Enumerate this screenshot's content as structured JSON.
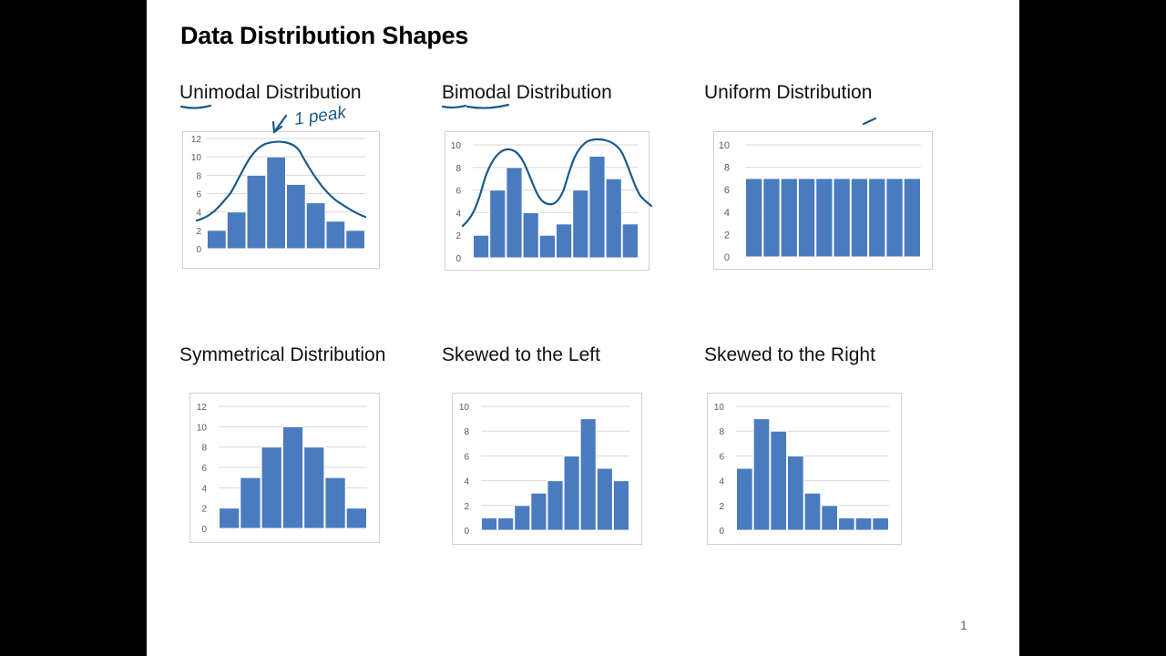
{
  "slide": {
    "title": "Data Distribution Shapes",
    "page_number": "1",
    "annotation_text": "1 peak"
  },
  "headings": {
    "unimodal": "Unimodal Distribution",
    "bimodal": "Bimodal Distribution",
    "uniform": "Uniform Distribution",
    "symmetrical": "Symmetrical Distribution",
    "skew_left": "Skewed to the Left",
    "skew_right": "Skewed to the Right"
  },
  "colors": {
    "bar": "#4a7bbf",
    "bar_edge": "#ffffff",
    "grid": "#d9d9d9",
    "ink": "#1a5a8a"
  },
  "chart_data": [
    {
      "type": "bar",
      "id": "unimodal",
      "values": [
        2,
        4,
        8,
        10,
        7,
        5,
        3,
        2
      ],
      "ylim": [
        0,
        12
      ],
      "yticks": [
        0,
        2,
        4,
        6,
        8,
        10,
        12
      ],
      "title": "Unimodal Distribution"
    },
    {
      "type": "bar",
      "id": "bimodal",
      "values": [
        2,
        6,
        8,
        4,
        2,
        3,
        6,
        9,
        7,
        3
      ],
      "ylim": [
        0,
        10
      ],
      "yticks": [
        0,
        2,
        4,
        6,
        8,
        10
      ],
      "title": "Bimodal Distribution"
    },
    {
      "type": "bar",
      "id": "uniform",
      "values": [
        7,
        7,
        7,
        7,
        7,
        7,
        7,
        7,
        7,
        7
      ],
      "ylim": [
        0,
        10
      ],
      "yticks": [
        0,
        2,
        4,
        6,
        8,
        10
      ],
      "title": "Uniform Distribution"
    },
    {
      "type": "bar",
      "id": "symmetrical",
      "values": [
        2,
        5,
        8,
        10,
        8,
        5,
        2
      ],
      "ylim": [
        0,
        12
      ],
      "yticks": [
        0,
        2,
        4,
        6,
        8,
        10,
        12
      ],
      "title": "Symmetrical Distribution"
    },
    {
      "type": "bar",
      "id": "skew_left",
      "values": [
        1,
        1,
        2,
        3,
        4,
        6,
        9,
        5,
        4
      ],
      "ylim": [
        0,
        10
      ],
      "yticks": [
        0,
        2,
        4,
        6,
        8,
        10
      ],
      "title": "Skewed to the Left"
    },
    {
      "type": "bar",
      "id": "skew_right",
      "values": [
        5,
        9,
        8,
        6,
        3,
        2,
        1,
        1,
        1
      ],
      "ylim": [
        0,
        10
      ],
      "yticks": [
        0,
        2,
        4,
        6,
        8,
        10
      ],
      "title": "Skewed to the Right"
    }
  ]
}
